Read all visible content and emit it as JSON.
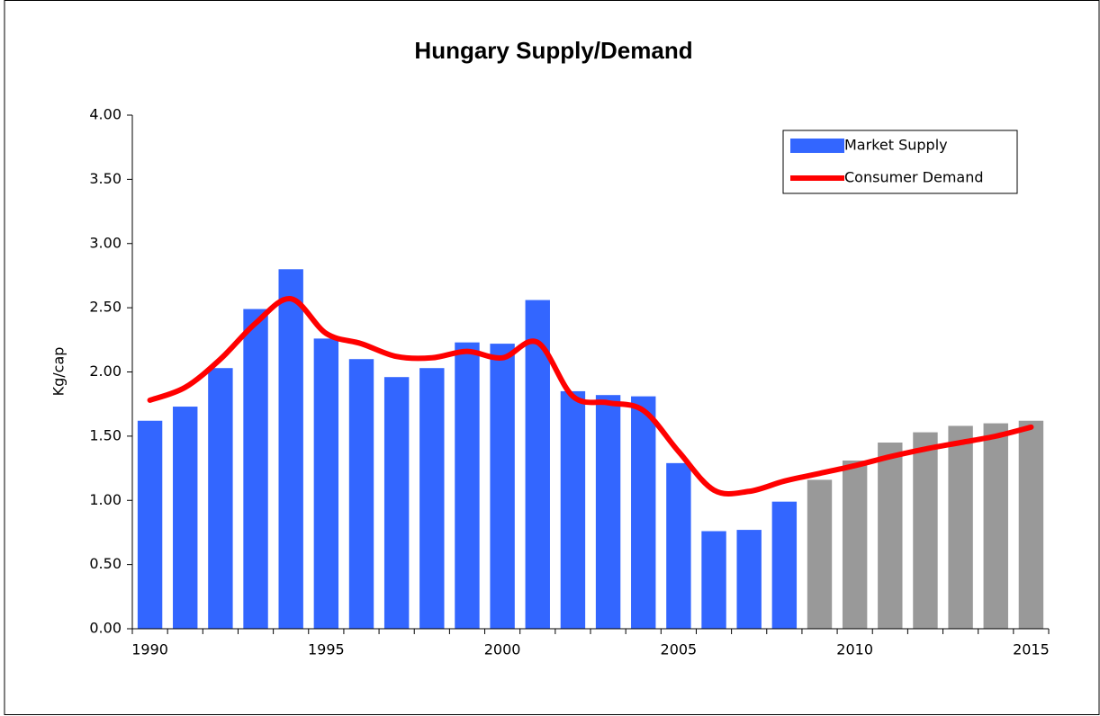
{
  "chart_data": {
    "type": "bar-line",
    "title": "Hungary Supply/Demand",
    "y_label": "Kg/cap",
    "categories": [
      "1990",
      null,
      null,
      null,
      null,
      "1995",
      null,
      null,
      null,
      null,
      "2000",
      null,
      null,
      null,
      null,
      "2005",
      null,
      null,
      null,
      null,
      "2010",
      null,
      null,
      null,
      null,
      "2015"
    ],
    "series": [
      {
        "name": "Market Supply",
        "kind": "bar",
        "color": "#3366ff",
        "colors": [
          "#3366ff",
          "#3366ff",
          "#3366ff",
          "#3366ff",
          "#3366ff",
          "#3366ff",
          "#3366ff",
          "#3366ff",
          "#3366ff",
          "#3366ff",
          "#3366ff",
          "#3366ff",
          "#3366ff",
          "#3366ff",
          "#3366ff",
          "#3366ff",
          "#3366ff",
          "#3366ff",
          "#3366ff",
          "#999999",
          "#999999",
          "#999999",
          "#999999",
          "#999999",
          "#999999",
          "#999999"
        ],
        "values": [
          1.62,
          1.73,
          2.03,
          2.49,
          2.8,
          2.26,
          2.1,
          1.96,
          2.03,
          2.23,
          2.22,
          2.56,
          1.85,
          1.82,
          1.81,
          1.29,
          0.76,
          0.77,
          0.99,
          1.16,
          1.31,
          1.45,
          1.53,
          1.58,
          1.6,
          1.62
        ]
      },
      {
        "name": "Consumer Demand",
        "kind": "line",
        "color": "#ff0000",
        "values": [
          1.78,
          1.88,
          2.1,
          2.38,
          2.57,
          2.3,
          2.22,
          2.12,
          2.11,
          2.16,
          2.11,
          2.23,
          1.81,
          1.76,
          1.7,
          1.38,
          1.08,
          1.07,
          1.15,
          1.21,
          1.27,
          1.34,
          1.4,
          1.45,
          1.5,
          1.57
        ]
      }
    ],
    "ylim": [
      0,
      4
    ],
    "yticks": [
      {
        "value": 0,
        "label": "0.00"
      },
      {
        "value": 0.5,
        "label": "0.50"
      },
      {
        "value": 1,
        "label": "1.00"
      },
      {
        "value": 1.5,
        "label": "1.50"
      },
      {
        "value": 2,
        "label": "2.00"
      },
      {
        "value": 2.5,
        "label": "2.50"
      },
      {
        "value": 3,
        "label": "3.00"
      },
      {
        "value": 3.5,
        "label": "3.50"
      },
      {
        "value": 4,
        "label": "4.00"
      }
    ],
    "legend": "top-right",
    "grid": false
  }
}
